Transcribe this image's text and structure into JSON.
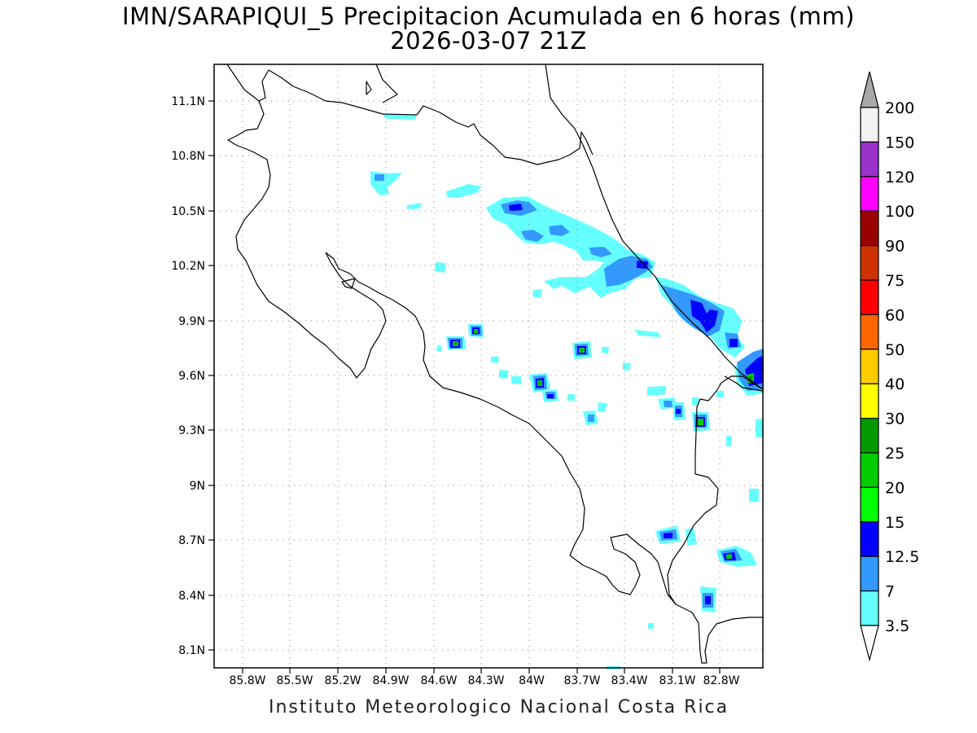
{
  "title": {
    "line1": "IMN/SARAPIQUI_5 Precipitacion Acumulada en 6 horas (mm)",
    "line2": "2026-03-07 21Z"
  },
  "footer": "Instituto Meteorologico Nacional Costa Rica",
  "map": {
    "lon_ticks": [
      "85.8W",
      "85.5W",
      "85.2W",
      "84.9W",
      "84.6W",
      "84.3W",
      "84W",
      "83.7W",
      "83.4W",
      "83.1W",
      "82.8W"
    ],
    "lat_ticks": [
      "11.1N",
      "10.8N",
      "10.5N",
      "10.2N",
      "9.9N",
      "9.6N",
      "9.3N",
      "9N",
      "8.7N",
      "8.4N",
      "8.1N"
    ]
  },
  "legend": {
    "labels": [
      "200",
      "150",
      "120",
      "100",
      "90",
      "75",
      "60",
      "50",
      "40",
      "30",
      "25",
      "20",
      "15",
      "12.5",
      "7",
      "3.5"
    ],
    "colors": [
      "#f2f2f2",
      "#9933cc",
      "#ff00ff",
      "#990000",
      "#cc3300",
      "#ff0000",
      "#ff6600",
      "#ffcc00",
      "#ffff00",
      "#009900",
      "#00cc00",
      "#00ff00",
      "#0000ff",
      "#3399ff",
      "#66ffff"
    ],
    "top_arrow_color": "#a8a8a8",
    "bottom_arrow_color": "#ffffff"
  }
}
